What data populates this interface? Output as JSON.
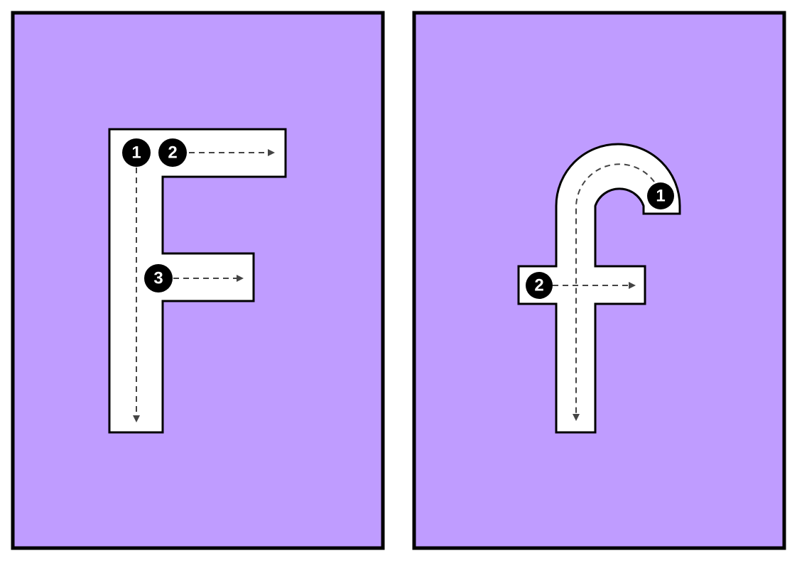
{
  "colors": {
    "panel_fill": "#bf9cff",
    "panel_border": "#000000",
    "letter_fill": "#ffffff",
    "letter_outline": "#000000",
    "guide_line": "#444444",
    "badge_fill": "#000000",
    "badge_text": "#ffffff"
  },
  "panels": [
    {
      "letter": "F",
      "strokes": [
        {
          "number": "1",
          "direction": "down"
        },
        {
          "number": "2",
          "direction": "right"
        },
        {
          "number": "3",
          "direction": "right"
        }
      ]
    },
    {
      "letter": "f",
      "strokes": [
        {
          "number": "1",
          "direction": "arc-left-then-down"
        },
        {
          "number": "2",
          "direction": "right"
        }
      ]
    }
  ]
}
